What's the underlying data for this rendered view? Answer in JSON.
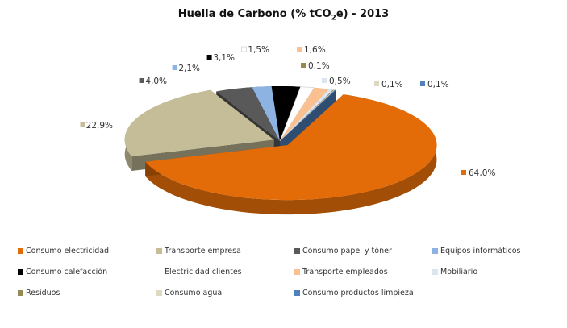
{
  "chart_data": {
    "type": "pie",
    "title": "Huella de Carbono (% tCO",
    "title_sub": "2",
    "title_end": "e) - 2013",
    "legend_position": "bottom",
    "series": [
      {
        "name": "Consumo electricidad",
        "value": 64.0,
        "label": "64,0%",
        "color": "#E36C09"
      },
      {
        "name": "Transporte empresa",
        "value": 22.9,
        "label": "22,9%",
        "color": "#C4BD97"
      },
      {
        "name": "Consumo papel y tóner",
        "value": 4.0,
        "label": "4,0%",
        "color": "#595959"
      },
      {
        "name": "Equipos informáticos",
        "value": 2.1,
        "label": "2,1%",
        "color": "#8DB3E2"
      },
      {
        "name": "Consumo calefacción",
        "value": 3.1,
        "label": "3,1%",
        "color": "#000000"
      },
      {
        "name": "Electricidad clientes",
        "value": 1.5,
        "label": "1,5%",
        "color": "#FFFFFF"
      },
      {
        "name": "Transporte empleados",
        "value": 1.6,
        "label": "1,6%",
        "color": "#FAC090"
      },
      {
        "name": "Mobiliario",
        "value": 0.5,
        "label": "0,5%",
        "color": "#DCE6F2"
      },
      {
        "name": "Residuos",
        "value": 0.1,
        "label": "0,1%",
        "color": "#948A54"
      },
      {
        "name": "Consumo agua",
        "value": 0.1,
        "label": "0,1%",
        "color": "#DDD9C3"
      },
      {
        "name": "Consumo productos limpieza",
        "value": 0.1,
        "label": "0,1%",
        "color": "#4F81BD"
      }
    ]
  }
}
